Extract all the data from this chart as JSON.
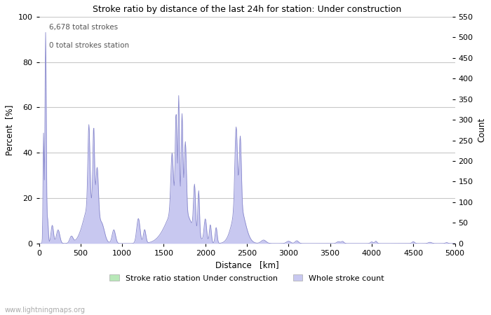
{
  "title": "Stroke ratio by distance of the last 24h for station: Under construction",
  "xlabel": "Distance   [km]",
  "ylabel_left": "Percent  [%]",
  "ylabel_right": "Count",
  "annotation_line1": "6,678 total strokes",
  "annotation_line2": "0 total strokes station",
  "xlim": [
    0,
    5000
  ],
  "ylim_left": [
    0,
    100
  ],
  "ylim_right": [
    0,
    550
  ],
  "xticks": [
    0,
    500,
    1000,
    1500,
    2000,
    2500,
    3000,
    3500,
    4000,
    4500,
    5000
  ],
  "yticks_left": [
    0,
    20,
    40,
    60,
    80,
    100
  ],
  "yticks_right": [
    0,
    50,
    100,
    150,
    200,
    250,
    300,
    350,
    400,
    450,
    500,
    550
  ],
  "legend_label_green": "Stroke ratio station Under construction",
  "legend_label_blue": "Whole stroke count",
  "fill_color_blue": "#c8c8f0",
  "fill_color_green": "#b8e8b8",
  "line_color_blue": "#8888cc",
  "line_color_green": "#88bb88",
  "watermark": "www.lightningmaps.org",
  "bg_color": "#ffffff",
  "grid_color": "#c8c8c8"
}
